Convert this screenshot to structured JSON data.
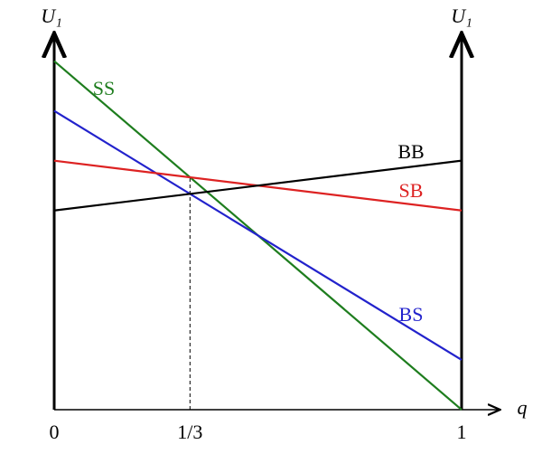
{
  "chart_data": {
    "type": "line",
    "x": [
      0,
      1
    ],
    "series": [
      {
        "name": "SS",
        "color": "#1e7d1e",
        "values": [
          7,
          0
        ]
      },
      {
        "name": "BS",
        "color": "#2222cc",
        "values": [
          6,
          1
        ]
      },
      {
        "name": "SB",
        "color": "#dd2222",
        "values": [
          5,
          4
        ]
      },
      {
        "name": "BB",
        "color": "#000000",
        "values": [
          4,
          5
        ]
      }
    ],
    "xlim": [
      0,
      1
    ],
    "ylim": [
      0,
      7.5
    ],
    "xticks": [
      0,
      {
        "value": 0.3333,
        "label": "1/3"
      },
      1
    ],
    "x_label": "q",
    "y_label": "U₁",
    "y2_label": "U₁"
  }
}
